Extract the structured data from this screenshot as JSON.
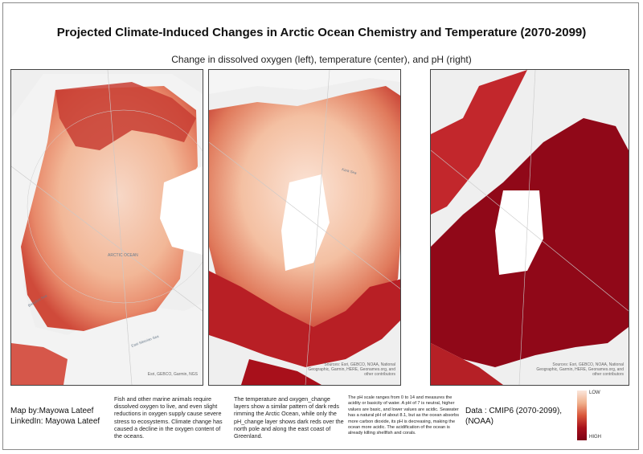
{
  "title": "Projected Climate-Induced Changes in Arctic Ocean Chemistry and Temperature (2070-2099)",
  "subtitle": "Change in dissolved oxygen (left), temperature (center), and pH (right)",
  "panels": [
    {
      "variable": "dissolved oxygen",
      "attribution": "Esri, GEBCO, Garmin, NGS",
      "map_labels": {
        "ocean": "ARCTIC OCEAN",
        "sea_1": "Beaufort Sea",
        "sea_2": "East Siberian Sea"
      }
    },
    {
      "variable": "temperature",
      "attribution": "Sources: Esri, GEBCO, NOAA, National Geographic, Garmin, HERE, Geonames.org, and other contributors",
      "map_labels": {
        "sea": "Kara Sea"
      }
    },
    {
      "variable": "pH",
      "attribution": "Sources: Esri, GEBCO, NOAA, National Geographic, Garmin, HERE, Geonames.org, and other contributors"
    }
  ],
  "credits": {
    "map_by": "Map by:Mayowa Lateef",
    "linkedin": "LinkedIn: Mayowa Lateef"
  },
  "notes": {
    "oxygen": "Fish and other marine animals require dissolved oxygen to live, and even slight reductions in oxygen supply cause severe stress to ecosystems. Climate change has caused a decline in the oxygen content of the oceans.",
    "temperature": "The temperature and oxygen_change layers show a similar pattern of dark reds rimming the Arctic Ocean, while only the pH_change layer shows dark reds over the north pole and along the east coast of Greenland.",
    "ph": "The pH scale ranges from 0 to 14 and measures the acidity or basicity of water. A pH of 7 is neutral, higher values are basic, and lower values are acidic. Seawater has a natural pH of about 8.1, but as the ocean absorbs more carbon dioxide, its pH is decreasing, making the ocean more acidic. The acidification of the ocean is already killing shellfish and corals."
  },
  "data_source": {
    "line1": "Data : CMIP6 (2070-2099),",
    "line2": "(NOAA)"
  },
  "legend": {
    "low": "LOW",
    "high": "HIGH",
    "colors": [
      "#fbe6dc",
      "#f0b18d",
      "#d9573b",
      "#a8101b",
      "#7d0014"
    ]
  }
}
